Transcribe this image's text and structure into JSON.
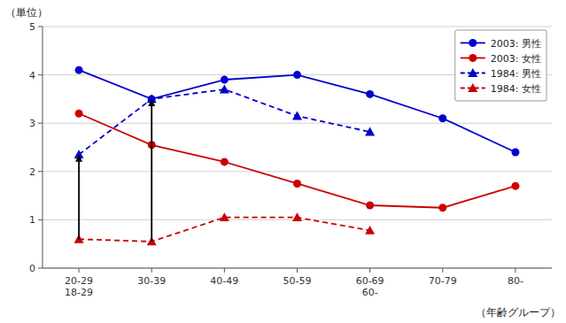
{
  "chart_data": {
    "type": "line",
    "categories": [
      "20-29\n18-29",
      "30-39",
      "40-49",
      "50-59",
      "60-69\n60-",
      "70-79",
      "80-"
    ],
    "series": [
      {
        "name": "2003: 男性",
        "color": "#0000cc",
        "marker": "circle",
        "line_style": "solid",
        "values": [
          4.1,
          3.5,
          3.9,
          4.0,
          3.6,
          3.1,
          2.4
        ]
      },
      {
        "name": "2003: 女性",
        "color": "#cc0000",
        "marker": "circle",
        "line_style": "solid",
        "values": [
          3.2,
          2.55,
          2.2,
          1.75,
          1.3,
          1.25,
          1.7
        ]
      },
      {
        "name": "1984: 男性",
        "color": "#0000cc",
        "marker": "triangle",
        "line_style": "dashed",
        "values": [
          2.35,
          3.5,
          3.7,
          3.15,
          2.82,
          null,
          null
        ]
      },
      {
        "name": "1984: 女性",
        "color": "#cc0000",
        "marker": "triangle",
        "line_style": "dashed",
        "values": [
          0.6,
          0.55,
          1.05,
          1.05,
          0.78,
          null,
          null
        ]
      }
    ],
    "ylim": [
      0,
      5
    ],
    "yticks": [
      0,
      1,
      2,
      3,
      4,
      5
    ],
    "y_label": "（単位）",
    "x_label": "（年齢グループ）",
    "grid": true,
    "legend": "upper right",
    "arrows": [
      {
        "category": "20-29\n18-29",
        "from": 0.6,
        "to": 2.35,
        "color": "#000000"
      },
      {
        "category": "30-39",
        "from": 0.55,
        "to": 3.5,
        "color": "#000000"
      }
    ]
  }
}
